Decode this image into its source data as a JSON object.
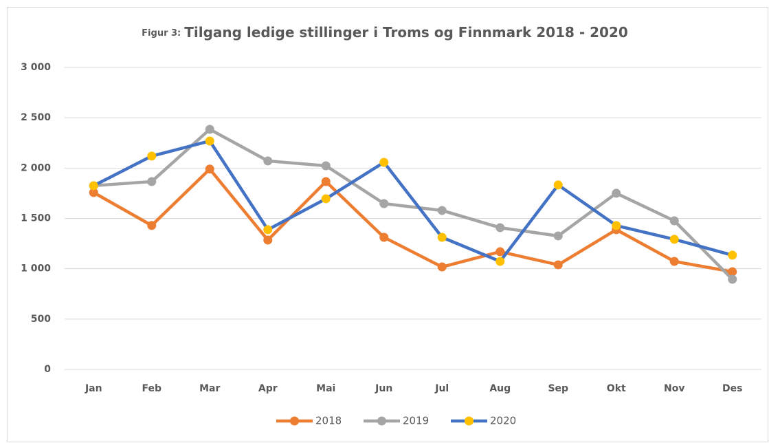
{
  "chart_data": {
    "type": "line",
    "title_prefix": "Figur 3:",
    "title": "Tilgang ledige stillinger i Troms og Finnmark 2018 - 2020",
    "categories": [
      "Jan",
      "Feb",
      "Mar",
      "Apr",
      "Mai",
      "Jun",
      "Jul",
      "Aug",
      "Sep",
      "Okt",
      "Nov",
      "Des"
    ],
    "series": [
      {
        "name": "2018",
        "color": "#ed7d31",
        "marker_color": "#ed7d31",
        "values": [
          1757,
          1430,
          1990,
          1285,
          1866,
          1312,
          1018,
          1169,
          1039,
          1388,
          1073,
          970
        ]
      },
      {
        "name": "2019",
        "color": "#a5a5a5",
        "marker_color": "#a5a5a5",
        "values": [
          1825,
          1866,
          2385,
          2071,
          2023,
          1647,
          1579,
          1408,
          1326,
          1750,
          1476,
          895
        ]
      },
      {
        "name": "2020",
        "color": "#4472c4",
        "marker_color": "#ffc000",
        "values": [
          1825,
          2119,
          2269,
          1388,
          1695,
          2057,
          1312,
          1073,
          1832,
          1429,
          1292,
          1135
        ]
      }
    ],
    "ylim": [
      0,
      3000
    ],
    "yticks": [
      0,
      500,
      {
        "value": 1000,
        "label": "1 000"
      },
      {
        "value": 1500,
        "label": "1 500"
      },
      {
        "value": 2000,
        "label": "2 000"
      },
      {
        "value": 2500,
        "label": "2 500"
      },
      {
        "value": 3000,
        "label": "3 000"
      }
    ],
    "grid": true,
    "legend": "bottom"
  }
}
